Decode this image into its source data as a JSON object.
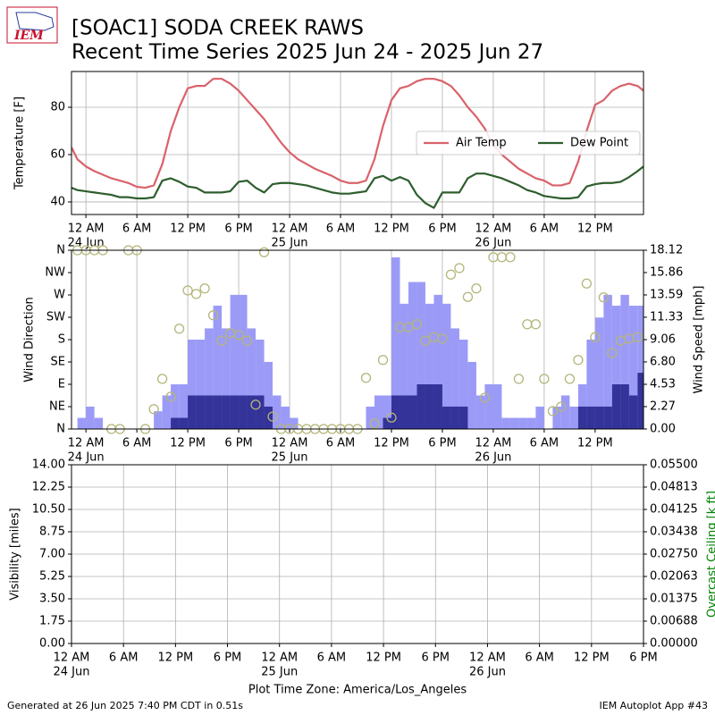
{
  "header": {
    "logo": "IEM",
    "title": "[SOAC1] SODA CREEK RAWS",
    "subtitle": "Recent Time Series 2025 Jun 24 - 2025 Jun 27"
  },
  "footer": {
    "generated": "Generated at 26 Jun 2025 7:40 PM CDT in 0.51s",
    "app": "IEM Autoplot App #43"
  },
  "chart_data": [
    {
      "type": "line",
      "ylabel": "Temperature [F]",
      "xlim": [
        -1.7,
        65.7
      ],
      "ylim": [
        34.7,
        95.1
      ],
      "yticks": [
        40,
        60,
        80
      ],
      "xticks": [
        {
          "value": 0,
          "label": "12 AM"
        },
        {
          "value": 6,
          "label": "6 AM"
        },
        {
          "value": 12,
          "label": "12 PM"
        },
        {
          "value": 18,
          "label": "6 PM"
        },
        {
          "value": 24,
          "label": "12 AM"
        },
        {
          "value": 30,
          "label": "6 AM"
        },
        {
          "value": 36,
          "label": "12 PM"
        },
        {
          "value": 42,
          "label": "6 PM"
        },
        {
          "value": 48,
          "label": "12 AM"
        },
        {
          "value": 54,
          "label": "6 AM"
        },
        {
          "value": 60,
          "label": "12 PM"
        }
      ],
      "xtick_days": [
        {
          "value": 0,
          "label": "24 Jun"
        },
        {
          "value": 24,
          "label": "25 Jun"
        },
        {
          "value": 48,
          "label": "26 Jun"
        }
      ],
      "grid": "both",
      "legend": "center right",
      "x": [
        -1.7,
        -1,
        0,
        1,
        2,
        3,
        4,
        5,
        6,
        7,
        8,
        9,
        10,
        11,
        12,
        13,
        14,
        15,
        16,
        17,
        18,
        19,
        20,
        21,
        22,
        23,
        24,
        25,
        26,
        27,
        28,
        29,
        30,
        31,
        32,
        33,
        34,
        35,
        36,
        37,
        38,
        39,
        40,
        41,
        42,
        43,
        44,
        45,
        46,
        47,
        48,
        49,
        50,
        51,
        52,
        53,
        54,
        55,
        56,
        57,
        58,
        59,
        60,
        61,
        62,
        63,
        64,
        65,
        65.7
      ],
      "series": [
        {
          "name": "Air Temp",
          "color": "#d9626b",
          "values": [
            63,
            58,
            55,
            53,
            51.5,
            50,
            49,
            48,
            46.4,
            46,
            47,
            56,
            70,
            80,
            88,
            89,
            89,
            92,
            92,
            90,
            87,
            83,
            79,
            75,
            70,
            65,
            61,
            58,
            56,
            54,
            52.5,
            51,
            49,
            48,
            48,
            49,
            58,
            72,
            83,
            88,
            89,
            91,
            92,
            92,
            91,
            89,
            85,
            80,
            76,
            71,
            64,
            60,
            57,
            54,
            52,
            50,
            49,
            47,
            47,
            48,
            57,
            70,
            81,
            83,
            87,
            89,
            90,
            89,
            87
          ]
        },
        {
          "name": "Dew Point",
          "color": "#2e5e2e",
          "values": [
            46,
            45,
            44.5,
            44,
            43.5,
            43,
            42,
            42,
            41.5,
            41.5,
            42,
            49,
            50,
            48.5,
            46.5,
            46,
            44,
            44,
            44,
            44.5,
            48.5,
            49,
            46,
            44,
            47.5,
            48,
            48,
            47.5,
            47,
            46,
            45,
            44,
            43.5,
            43.5,
            44,
            44.5,
            50,
            51,
            49,
            50.5,
            49,
            43,
            39.5,
            37.5,
            44,
            44,
            44,
            50,
            52,
            52,
            51,
            50,
            48.5,
            47,
            45,
            44,
            42.5,
            42,
            41.5,
            41.5,
            42,
            46.5,
            47.5,
            48,
            48,
            48.5,
            50.5,
            53,
            55
          ]
        }
      ]
    },
    {
      "type": "bar",
      "ylabel": "Wind Direction",
      "y2label": "Wind Speed [mph]",
      "xlim": [
        -1.7,
        65.7
      ],
      "ylim": [
        0,
        360
      ],
      "yticks": [
        {
          "value": 0,
          "label": "N"
        },
        {
          "value": 45,
          "label": "NE"
        },
        {
          "value": 90,
          "label": "E"
        },
        {
          "value": 135,
          "label": "SE"
        },
        {
          "value": 180,
          "label": "S"
        },
        {
          "value": 225,
          "label": "SW"
        },
        {
          "value": 270,
          "label": "W"
        },
        {
          "value": 315,
          "label": "NW"
        },
        {
          "value": 360,
          "label": "N"
        }
      ],
      "y2lim": [
        0,
        18.12
      ],
      "y2ticks": [
        {
          "value": 0,
          "label": "0.00"
        },
        2.27,
        4.53,
        {
          "value": 6.8,
          "label": "6.80"
        },
        9.06,
        11.33,
        13.59,
        15.86,
        18.12
      ],
      "xticks": [
        {
          "value": 0,
          "label": "12 AM"
        },
        {
          "value": 6,
          "label": "6 AM"
        },
        {
          "value": 12,
          "label": "12 PM"
        },
        {
          "value": 18,
          "label": "6 PM"
        },
        {
          "value": 24,
          "label": "12 AM"
        },
        {
          "value": 30,
          "label": "6 AM"
        },
        {
          "value": 36,
          "label": "12 PM"
        },
        {
          "value": 42,
          "label": "6 PM"
        },
        {
          "value": 48,
          "label": "12 AM"
        },
        {
          "value": 54,
          "label": "6 AM"
        },
        {
          "value": 60,
          "label": "12 PM"
        }
      ],
      "xtick_days": [
        {
          "value": 0,
          "label": "24 Jun"
        },
        {
          "value": 24,
          "label": "25 Jun"
        },
        {
          "value": 48,
          "label": "26 Jun"
        }
      ],
      "grid": "x",
      "x": [
        -1,
        0,
        1,
        2,
        3,
        4,
        5,
        6,
        7,
        8,
        9,
        10,
        11,
        12,
        13,
        14,
        15,
        16,
        17,
        18,
        19,
        20,
        21,
        22,
        23,
        24,
        25,
        26,
        27,
        28,
        29,
        30,
        31,
        32,
        33,
        34,
        35,
        36,
        37,
        38,
        39,
        40,
        41,
        42,
        43,
        44,
        45,
        46,
        47,
        48,
        49,
        50,
        51,
        52,
        53,
        54,
        55,
        56,
        57,
        58,
        59,
        60,
        61,
        62,
        63,
        64,
        65
      ],
      "series": [
        {
          "type": "bar",
          "axis": "y2",
          "color": "#9b9bf7",
          "values": [
            1.13,
            2.27,
            1.13,
            0,
            0,
            0,
            0,
            0,
            0,
            1.8,
            3.4,
            4.53,
            4.53,
            9.06,
            9.06,
            10.2,
            12.5,
            10.2,
            13.6,
            13.6,
            10.2,
            9.06,
            6.8,
            3.4,
            2.27,
            1.13,
            0,
            0,
            0,
            0,
            0,
            0,
            0,
            0,
            2.27,
            3.4,
            3.4,
            17.4,
            12.7,
            14.9,
            14.9,
            12.7,
            13.6,
            12.7,
            10.2,
            9.06,
            6.8,
            3.4,
            4.53,
            4.53,
            1.13,
            1.13,
            1.13,
            1.13,
            2.27,
            0,
            2.27,
            3.4,
            2.27,
            4.53,
            9.06,
            11.3,
            13.6,
            12.5,
            13.6,
            12.5,
            12.5
          ]
        },
        {
          "type": "bar",
          "axis": "y2",
          "color": "#333399",
          "values": [
            0,
            0,
            0,
            0,
            0,
            0,
            0,
            0,
            0,
            0,
            0,
            1.13,
            1.13,
            3.4,
            3.4,
            3.4,
            3.4,
            3.4,
            3.4,
            3.4,
            3.4,
            3.4,
            2.27,
            0,
            0,
            0,
            0,
            0,
            0,
            0,
            0,
            0,
            0,
            0,
            0,
            0,
            1.13,
            3.4,
            3.4,
            3.4,
            4.53,
            4.53,
            4.53,
            2.27,
            2.27,
            2.27,
            0,
            0,
            0,
            0,
            0,
            0,
            0,
            0,
            0,
            0,
            0,
            0,
            0,
            2.27,
            2.27,
            2.27,
            2.27,
            4.53,
            4.53,
            3.4,
            5.7
          ]
        },
        {
          "type": "scatter",
          "color": "#b5b57a",
          "values": [
            360,
            360,
            360,
            360,
            0,
            0,
            360,
            360,
            0,
            40,
            101,
            65,
            202,
            279,
            272,
            283,
            229,
            178,
            193,
            189,
            178,
            49,
            356,
            25,
            0,
            0,
            0,
            0,
            0,
            0,
            0,
            0,
            0,
            0,
            103,
            11,
            139,
            23,
            205,
            205,
            211,
            178,
            185,
            182,
            311,
            324,
            266,
            283,
            63,
            346,
            346,
            346,
            101,
            211,
            211,
            101,
            36,
            45,
            101,
            139,
            293,
            185,
            265,
            153,
            178,
            182,
            185
          ]
        }
      ]
    },
    {
      "type": "line",
      "ylabel": "Visibility [miles]",
      "y2label": "Overcast Ceiling [k ft]",
      "y2color": "#008000",
      "xlabel": "Plot Time Zone: America/Los_Angeles",
      "xlim": [
        0,
        66
      ],
      "ylim": [
        0,
        14
      ],
      "yticks": [
        {
          "value": 0,
          "label": "0.00"
        },
        1.75,
        {
          "value": 3.5,
          "label": "3.50"
        },
        5.25,
        {
          "value": 7,
          "label": "7.00"
        },
        8.75,
        {
          "value": 10.5,
          "label": "10.50"
        },
        12.25,
        {
          "value": 14,
          "label": "14.00"
        }
      ],
      "y2lim": [
        0,
        0.055
      ],
      "y2ticks": [
        {
          "value": 0,
          "label": "0.00000"
        },
        0.00688,
        0.01375,
        0.02063,
        {
          "value": 0.0275,
          "label": "0.02750"
        },
        0.03438,
        0.04125,
        0.04813,
        {
          "value": 0.055,
          "label": "0.05500"
        }
      ],
      "xticks": [
        {
          "value": 0,
          "label": "12 AM"
        },
        {
          "value": 6,
          "label": "6 AM"
        },
        {
          "value": 12,
          "label": "12 PM"
        },
        {
          "value": 18,
          "label": "6 PM"
        },
        {
          "value": 24,
          "label": "12 AM"
        },
        {
          "value": 30,
          "label": "6 AM"
        },
        {
          "value": 36,
          "label": "12 PM"
        },
        {
          "value": 42,
          "label": "6 PM"
        },
        {
          "value": 48,
          "label": "12 AM"
        },
        {
          "value": 54,
          "label": "6 AM"
        },
        {
          "value": 60,
          "label": "12 PM"
        },
        {
          "value": 66,
          "label": "6 PM"
        }
      ],
      "xtick_days": [
        {
          "value": 0,
          "label": "24 Jun"
        },
        {
          "value": 24,
          "label": "25 Jun"
        },
        {
          "value": 48,
          "label": "26 Jun"
        }
      ],
      "grid": "both"
    }
  ]
}
